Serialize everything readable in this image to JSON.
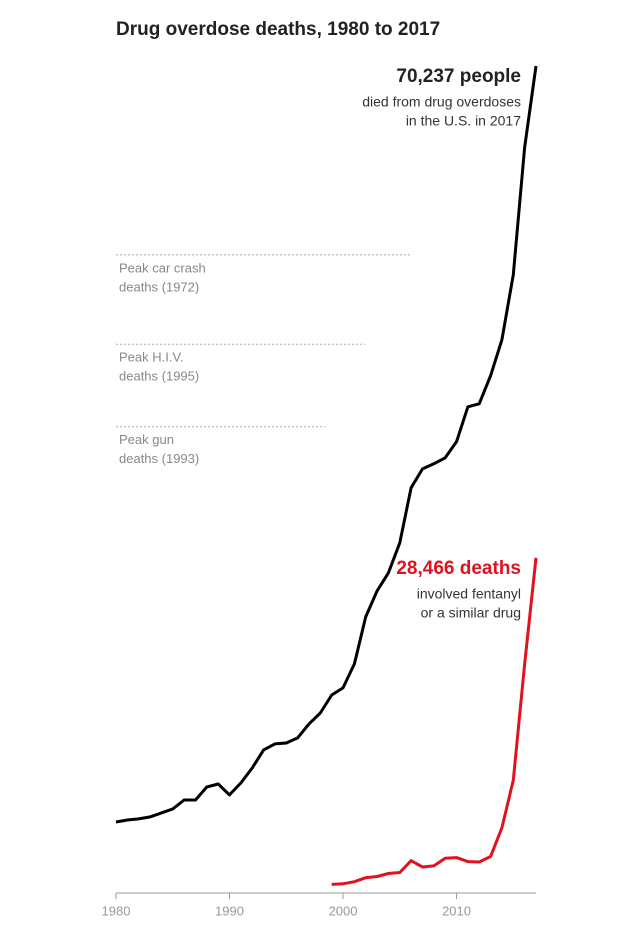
{
  "chart_data": {
    "type": "line",
    "title": "Drug overdose deaths, 1980 to 2017",
    "xlim": [
      1980,
      2017
    ],
    "xticks": [
      1980,
      1990,
      2000,
      2010
    ],
    "ylim": [
      0,
      70237
    ],
    "reference_lines": [
      {
        "value": 54200,
        "label": [
          "Peak car crash",
          "deaths (1972)"
        ]
      },
      {
        "value": 46600,
        "label": [
          "Peak H.I.V.",
          "deaths (1995)"
        ]
      },
      {
        "value": 39600,
        "label": [
          "Peak gun",
          "deaths (1993)"
        ]
      }
    ],
    "series": [
      {
        "name": "Drug overdose deaths",
        "color": "#000000",
        "x": [
          1980,
          1981,
          1982,
          1983,
          1984,
          1985,
          1986,
          1987,
          1988,
          1989,
          1990,
          1991,
          1992,
          1993,
          1994,
          1995,
          1996,
          1997,
          1998,
          1999,
          2000,
          2001,
          2002,
          2003,
          2004,
          2005,
          2006,
          2007,
          2008,
          2009,
          2010,
          2011,
          2012,
          2013,
          2014,
          2015,
          2016,
          2017
        ],
        "values": [
          6030,
          6200,
          6290,
          6460,
          6800,
          7140,
          7900,
          7900,
          9000,
          9260,
          8330,
          9350,
          10620,
          12150,
          12660,
          12740,
          13170,
          14360,
          15290,
          16820,
          17420,
          19460,
          23450,
          25660,
          27190,
          29740,
          34410,
          36020,
          36450,
          36960,
          38320,
          41290,
          41550,
          43930,
          46980,
          52510,
          63300,
          70237
        ],
        "annotation": [
          "70,237 people",
          "died from drug overdoses",
          "in the U.S. in 2017"
        ]
      },
      {
        "name": "Fentanyl deaths",
        "color": "#e0121f",
        "x": [
          1999,
          2000,
          2001,
          2002,
          2003,
          2004,
          2005,
          2006,
          2007,
          2008,
          2009,
          2010,
          2011,
          2012,
          2013,
          2014,
          2015,
          2016,
          2017
        ],
        "values": [
          730,
          780,
          960,
          1300,
          1400,
          1660,
          1740,
          2740,
          2210,
          2300,
          2950,
          3010,
          2670,
          2630,
          3100,
          5540,
          9580,
          19410,
          28466
        ],
        "annotation": [
          "28,466 deaths",
          "involved fentanyl",
          "or a similar drug"
        ]
      }
    ]
  }
}
